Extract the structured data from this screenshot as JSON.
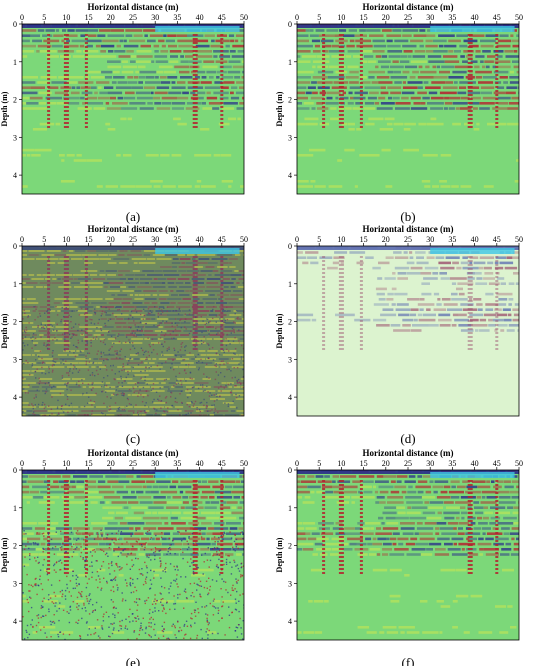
{
  "figure": {
    "panels": [
      {
        "id": "a",
        "label": "(a)",
        "variant": "standard",
        "col": 0,
        "row": 0
      },
      {
        "id": "b",
        "label": "(b)",
        "variant": "strong",
        "col": 1,
        "row": 0
      },
      {
        "id": "c",
        "label": "(c)",
        "variant": "noise",
        "col": 0,
        "row": 1
      },
      {
        "id": "d",
        "label": "(d)",
        "variant": "faded",
        "col": 1,
        "row": 1
      },
      {
        "id": "e",
        "label": "(e)",
        "variant": "grainy",
        "col": 0,
        "row": 2
      },
      {
        "id": "f",
        "label": "(f)",
        "variant": "standard",
        "col": 1,
        "row": 2
      }
    ]
  },
  "chart_data": {
    "type": "heatmap",
    "title": "",
    "xlabel": "Horizontal distance (m)",
    "ylabel": "Depth (m)",
    "xlim": [
      0,
      50
    ],
    "ylim": [
      0,
      4.5
    ],
    "x_ticks": [
      0,
      5,
      10,
      15,
      20,
      25,
      30,
      35,
      40,
      45,
      50
    ],
    "y_ticks": [
      0,
      1,
      2,
      3,
      4
    ],
    "y_inverted": true,
    "colors": {
      "background": "#7cd879",
      "positive": "#b5202e",
      "negative": "#2a2e8a",
      "accent": "#fdf23a"
    }
  }
}
